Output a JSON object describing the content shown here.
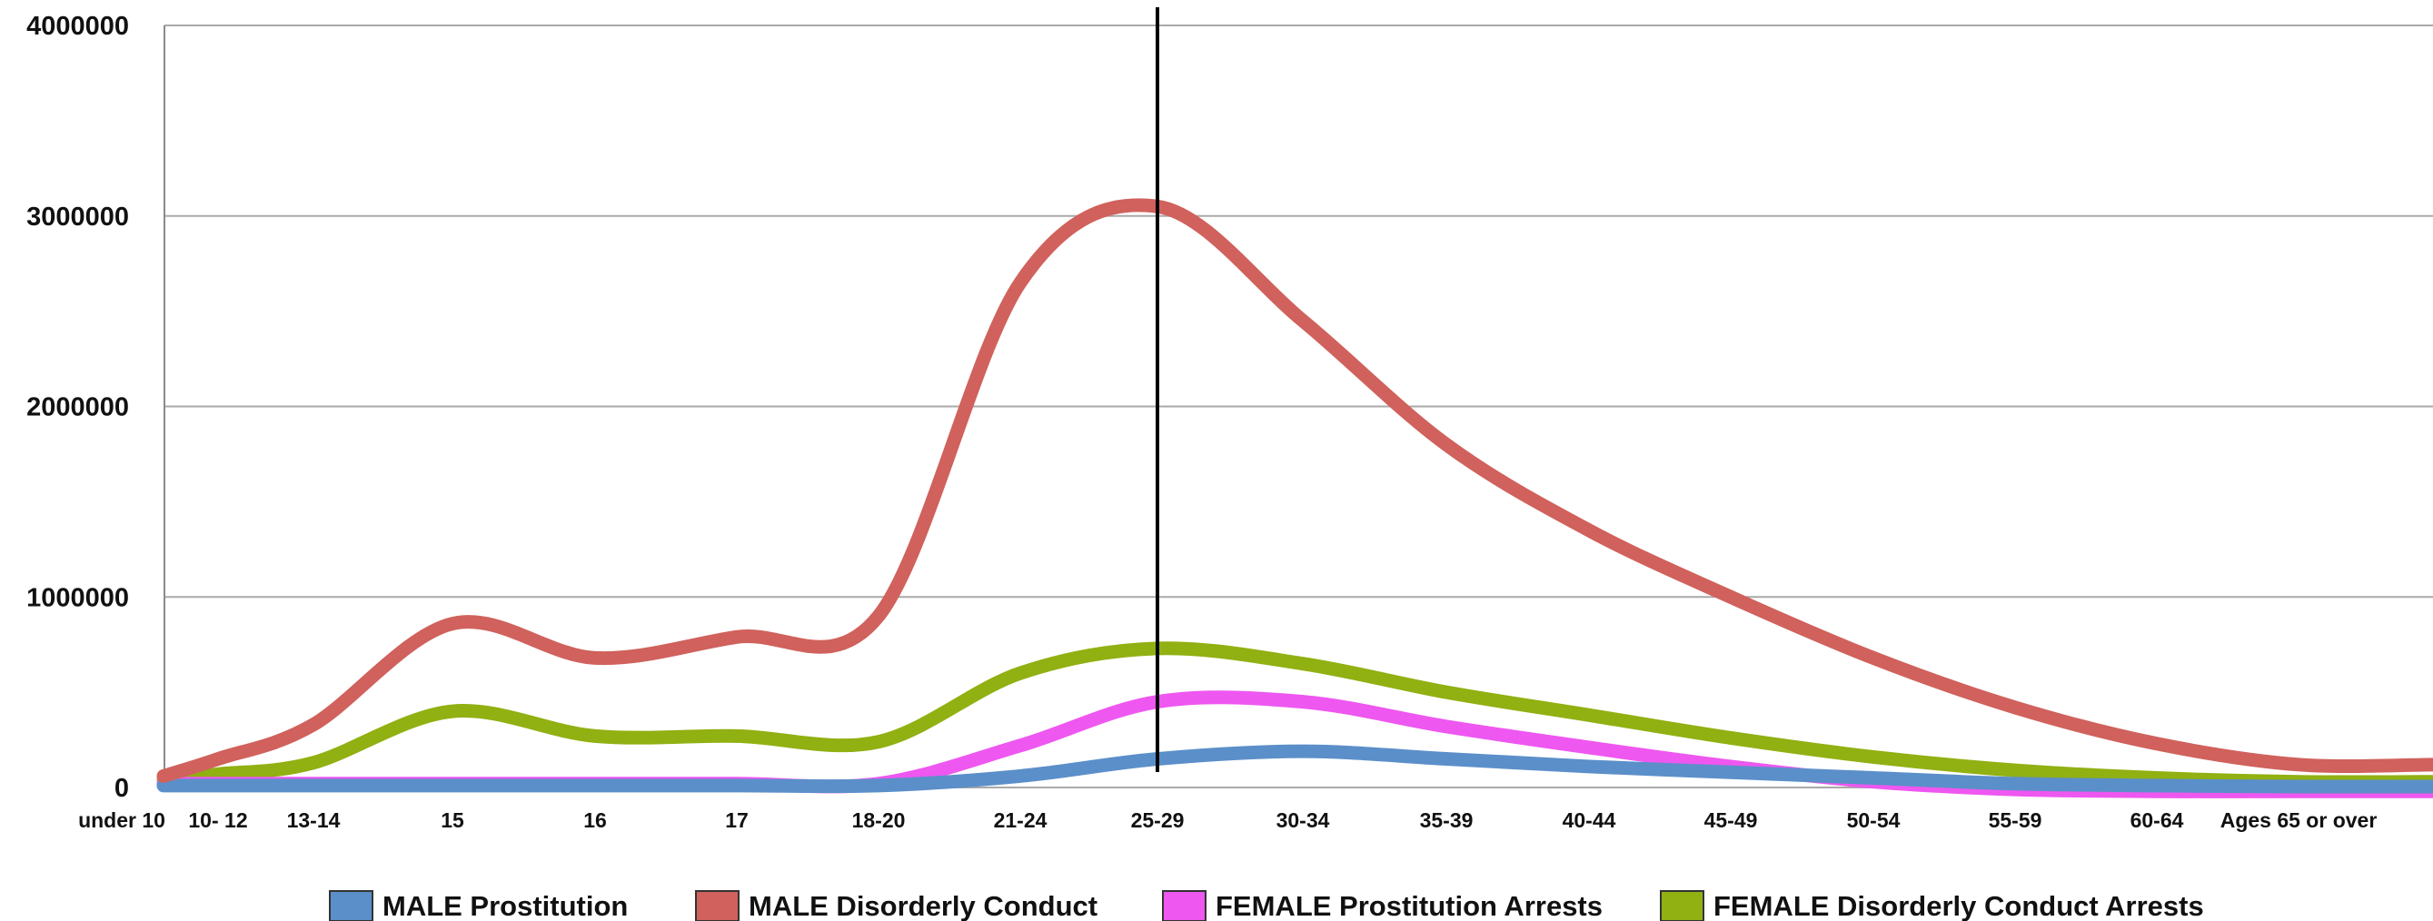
{
  "chart_data": {
    "type": "line",
    "title": "",
    "xlabel": "",
    "ylabel": "",
    "ylim": [
      0,
      4000000
    ],
    "yticks": [
      "0",
      "1000000",
      "2000000",
      "3000000",
      "4000000"
    ],
    "categories": [
      "under 10",
      "10- 12",
      "13-14",
      "15",
      "16",
      "17",
      "18-20",
      "21-24",
      "25-29",
      "30-34",
      "35-39",
      "40-44",
      "45-49",
      "50-54",
      "55-59",
      "60-64",
      "Ages 65 or over"
    ],
    "grid": true,
    "legend_position": "bottom",
    "series": [
      {
        "name": "MALE Prostitution",
        "color": "#5b8fc9",
        "values": [
          10000,
          10000,
          10000,
          10000,
          10000,
          10000,
          10000,
          60000,
          150000,
          190000,
          150000,
          110000,
          80000,
          50000,
          20000,
          10000,
          5000
        ]
      },
      {
        "name": "MALE Disorderly Conduct",
        "color": "#d0615c",
        "values": [
          60000,
          150000,
          330000,
          860000,
          680000,
          790000,
          900000,
          2650000,
          3050000,
          2450000,
          1800000,
          1350000,
          1000000,
          680000,
          420000,
          230000,
          120000
        ]
      },
      {
        "name": "FEMALE Prostitution Arrests",
        "color": "#ee57f0",
        "values": [
          20000,
          20000,
          20000,
          20000,
          20000,
          20000,
          20000,
          220000,
          450000,
          450000,
          320000,
          210000,
          110000,
          30000,
          -10000,
          -20000,
          -20000
        ]
      },
      {
        "name": "FEMALE Disorderly Conduct Arrests",
        "color": "#91b012",
        "values": [
          40000,
          70000,
          130000,
          400000,
          270000,
          270000,
          240000,
          600000,
          730000,
          650000,
          500000,
          380000,
          260000,
          160000,
          90000,
          50000,
          30000
        ]
      }
    ],
    "reference_line_category": "25-29"
  }
}
